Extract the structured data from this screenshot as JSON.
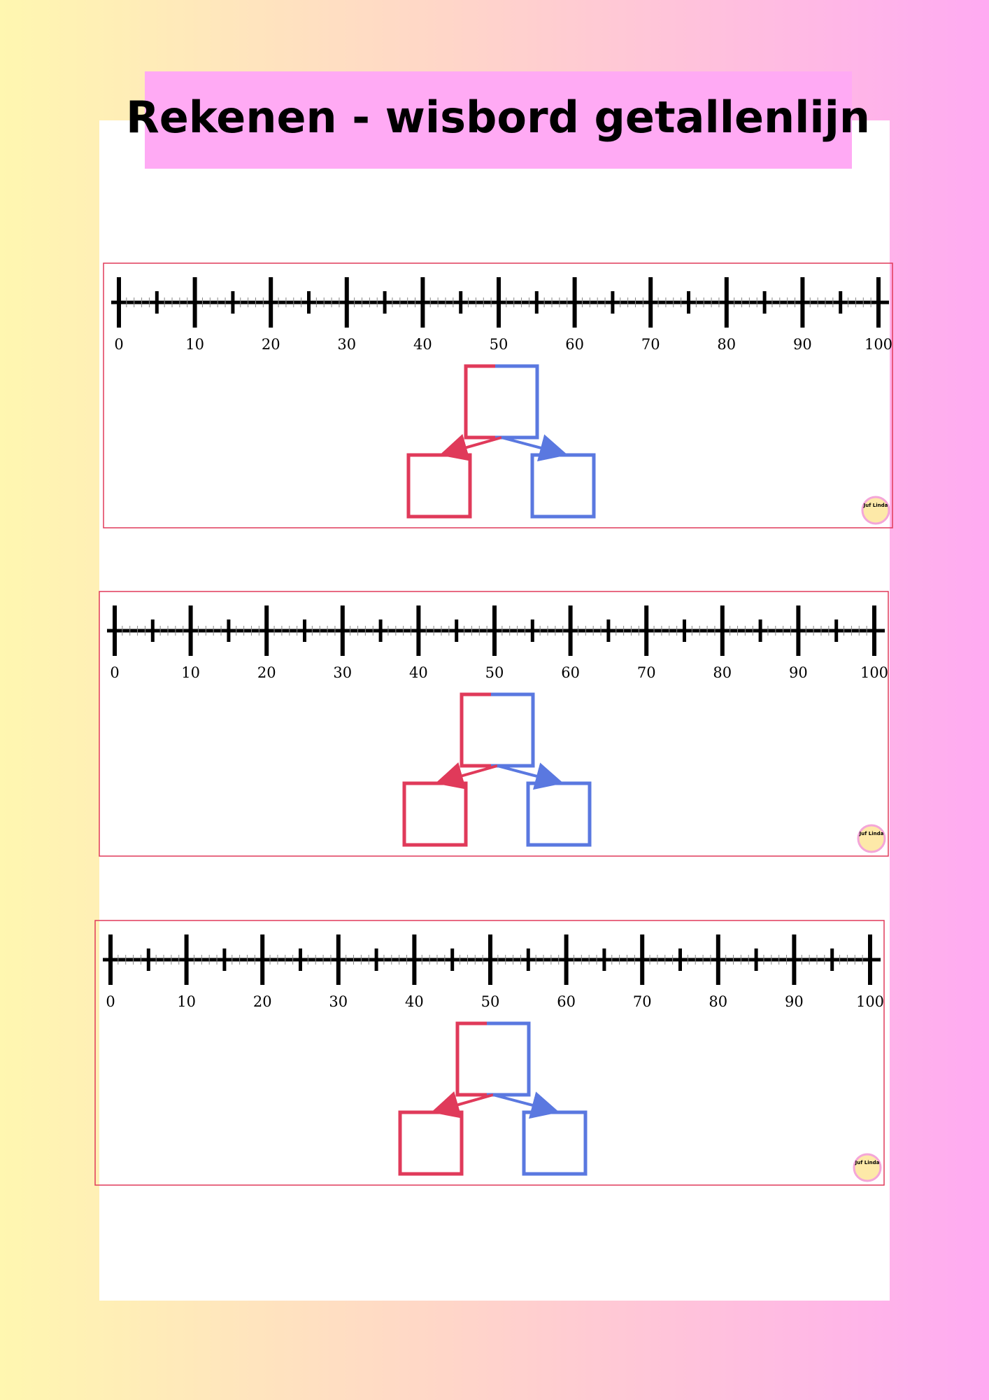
{
  "header": {
    "title": "Rekenen - wisbord getallenlijn"
  },
  "panels": [
    {
      "labels": [
        0,
        10,
        20,
        30,
        40,
        50,
        60,
        70,
        80,
        90,
        100
      ],
      "logo": "Juf Linda"
    },
    {
      "labels": [
        0,
        10,
        20,
        30,
        40,
        50,
        60,
        70,
        80,
        90,
        100
      ],
      "logo": "Juf Linda"
    },
    {
      "labels": [
        0,
        10,
        20,
        30,
        40,
        50,
        60,
        70,
        80,
        90,
        100
      ],
      "logo": "Juf Linda"
    }
  ]
}
